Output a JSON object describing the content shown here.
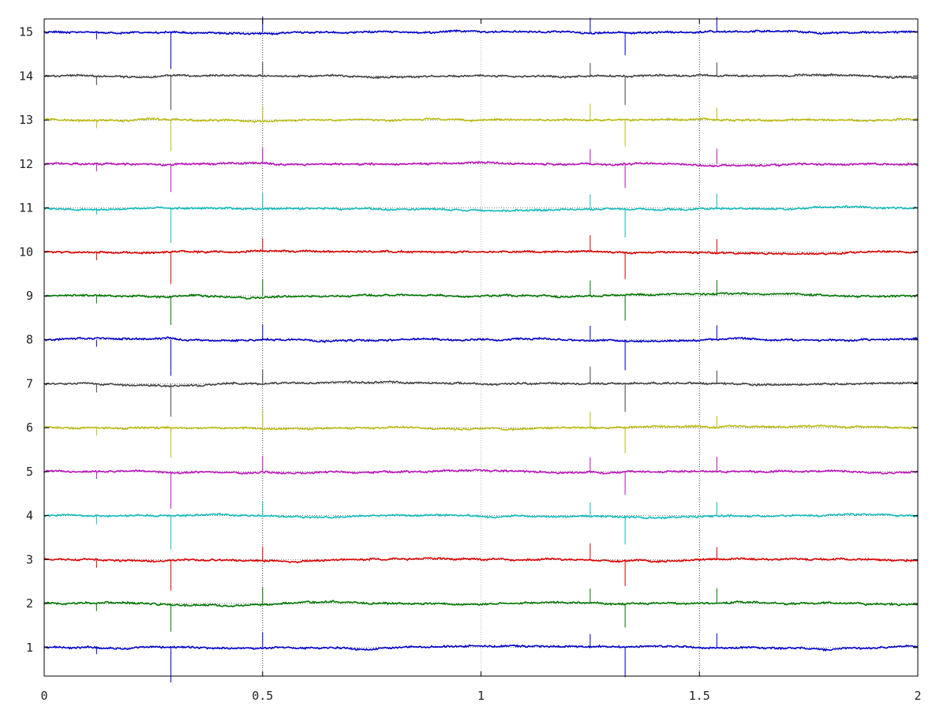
{
  "chart_data": {
    "type": "line",
    "title": "",
    "xlabel": "",
    "ylabel": "",
    "xlim": [
      0,
      2
    ],
    "ylim": [
      0.35,
      15.3
    ],
    "x_ticks": [
      0,
      0.5,
      1,
      1.5,
      2
    ],
    "x_tick_labels": [
      "0",
      "0.5",
      "1",
      "1.5",
      "2"
    ],
    "y_ticks": [
      1,
      2,
      3,
      4,
      5,
      6,
      7,
      8,
      9,
      10,
      11,
      12,
      13,
      14,
      15
    ],
    "y_tick_labels": [
      "1",
      "2",
      "3",
      "4",
      "5",
      "6",
      "7",
      "8",
      "9",
      "10",
      "11",
      "12",
      "13",
      "14",
      "15"
    ],
    "grid": {
      "x": "dotted",
      "y": "off"
    },
    "legend": "none",
    "baseline_style": "dotted",
    "series": [
      {
        "baseline": 1,
        "color": "#0000cc"
      },
      {
        "baseline": 2,
        "color": "#007700"
      },
      {
        "baseline": 3,
        "color": "#dd0000"
      },
      {
        "baseline": 4,
        "color": "#11bbbb"
      },
      {
        "baseline": 5,
        "color": "#bb11bb"
      },
      {
        "baseline": 6,
        "color": "#bbbb11"
      },
      {
        "baseline": 7,
        "color": "#444444"
      },
      {
        "baseline": 8,
        "color": "#0000cc"
      },
      {
        "baseline": 9,
        "color": "#007700"
      },
      {
        "baseline": 10,
        "color": "#dd0000"
      },
      {
        "baseline": 11,
        "color": "#11bbbb"
      },
      {
        "baseline": 12,
        "color": "#bb11bb"
      },
      {
        "baseline": 13,
        "color": "#bbbb11"
      },
      {
        "baseline": 14,
        "color": "#444444"
      },
      {
        "baseline": 15,
        "color": "#0000cc"
      }
    ],
    "spike_times": [
      0.12,
      0.29,
      0.5,
      1.25,
      1.33,
      1.54
    ]
  }
}
